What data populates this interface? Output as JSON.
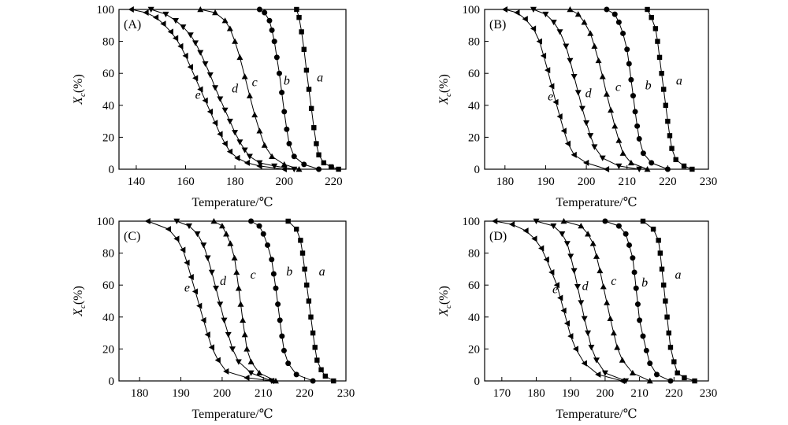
{
  "chart_data": [
    {
      "type": "line",
      "panel_label": "(A)",
      "xlabel": "Temperature/℃",
      "ylabel_main": "X",
      "ylabel_sub": "c",
      "ylabel_unit": "(%)",
      "xlim": [
        133,
        225
      ],
      "ylim": [
        0,
        100
      ],
      "xticks": [
        140,
        160,
        180,
        200,
        220
      ],
      "yticks": [
        0,
        20,
        40,
        60,
        80,
        100
      ],
      "series": [
        {
          "name": "a",
          "marker": "square",
          "label_pos": [
            214.5,
            55
          ],
          "x": [
            205,
            206,
            207,
            208,
            209,
            210,
            211,
            212,
            213,
            214,
            216,
            219,
            222
          ],
          "y": [
            100,
            95,
            86,
            75,
            62,
            50,
            38,
            26,
            16,
            9,
            4,
            1.5,
            0
          ]
        },
        {
          "name": "b",
          "marker": "circle",
          "label_pos": [
            201,
            53
          ],
          "x": [
            190,
            192,
            194,
            195,
            196,
            197,
            198,
            199,
            200,
            201,
            202,
            204,
            208,
            214
          ],
          "y": [
            100,
            98,
            93,
            87,
            80,
            70,
            60,
            48,
            36,
            25,
            16,
            8,
            3,
            0
          ]
        },
        {
          "name": "c",
          "marker": "triangle-up",
          "label_pos": [
            188,
            52
          ],
          "x": [
            166,
            172,
            176,
            178,
            180,
            182,
            184,
            186,
            188,
            190,
            192,
            195,
            200,
            206
          ],
          "y": [
            100,
            98,
            93,
            88,
            80,
            70,
            58,
            46,
            34,
            24,
            15,
            8,
            3,
            0
          ]
        },
        {
          "name": "d",
          "marker": "triangle-down",
          "label_pos": [
            180,
            48
          ],
          "x": [
            146,
            152,
            156,
            159,
            162,
            164,
            166,
            168,
            170,
            172,
            174,
            176,
            178,
            180,
            182,
            184,
            186,
            190,
            196,
            204
          ],
          "y": [
            100,
            97,
            93,
            89,
            84,
            79,
            73,
            66,
            59,
            51,
            44,
            37,
            30,
            23,
            17,
            12,
            8,
            4,
            2,
            0
          ]
        },
        {
          "name": "e",
          "marker": "triangle-left",
          "label_pos": [
            165,
            44
          ],
          "x": [
            138,
            144,
            148,
            151,
            154,
            156,
            158,
            160,
            162,
            164,
            166,
            168,
            170,
            172,
            174,
            176,
            178,
            181,
            185,
            190,
            200
          ],
          "y": [
            100,
            98,
            95,
            91,
            86,
            82,
            77,
            71,
            64,
            57,
            50,
            43,
            36,
            29,
            22,
            16,
            11,
            7,
            4,
            2,
            0
          ]
        }
      ]
    },
    {
      "type": "line",
      "panel_label": "(B)",
      "xlabel": "Temperature/℃",
      "ylabel_main": "X",
      "ylabel_sub": "c",
      "ylabel_unit": "(%)",
      "xlim": [
        175,
        230
      ],
      "ylim": [
        0,
        100
      ],
      "xticks": [
        180,
        190,
        200,
        210,
        220,
        230
      ],
      "yticks": [
        0,
        20,
        40,
        60,
        80,
        100
      ],
      "series": [
        {
          "name": "a",
          "marker": "square",
          "label_pos": [
            222.8,
            53
          ],
          "x": [
            215,
            216,
            217,
            217.5,
            218,
            218.5,
            219,
            219.5,
            220,
            220.5,
            221,
            222,
            224,
            226
          ],
          "y": [
            100,
            95,
            88,
            80,
            70,
            60,
            50,
            40,
            30,
            21,
            13,
            6,
            2,
            0
          ]
        },
        {
          "name": "b",
          "marker": "circle",
          "label_pos": [
            215.2,
            50
          ],
          "x": [
            205,
            207,
            208,
            209,
            210,
            210.5,
            211,
            211.5,
            212,
            212.5,
            213,
            214,
            216,
            220
          ],
          "y": [
            100,
            97,
            92,
            85,
            75,
            66,
            56,
            46,
            36,
            27,
            19,
            10,
            4,
            0
          ]
        },
        {
          "name": "c",
          "marker": "triangle-up",
          "label_pos": [
            207.8,
            49
          ],
          "x": [
            196,
            198,
            199.5,
            201,
            202,
            203,
            204,
            205,
            206,
            207,
            208,
            209,
            211,
            215
          ],
          "y": [
            100,
            97,
            92,
            85,
            77,
            68,
            58,
            47,
            37,
            27,
            18,
            10,
            4,
            0
          ]
        },
        {
          "name": "d",
          "marker": "triangle-down",
          "label_pos": [
            200.5,
            45
          ],
          "x": [
            187,
            190,
            192,
            193.5,
            195,
            196,
            197,
            198,
            199,
            200,
            201,
            202,
            204,
            208,
            213
          ],
          "y": [
            100,
            97,
            92,
            86,
            77,
            68,
            58,
            48,
            38,
            29,
            21,
            14,
            7,
            2,
            0
          ]
        },
        {
          "name": "e",
          "marker": "triangle-left",
          "label_pos": [
            191.2,
            43
          ],
          "x": [
            180,
            183,
            185,
            187,
            188.5,
            189.5,
            190.5,
            191.5,
            192.5,
            193.5,
            194.5,
            195.5,
            197,
            200,
            205
          ],
          "y": [
            100,
            98,
            94,
            88,
            80,
            71,
            62,
            52,
            42,
            33,
            24,
            16,
            9,
            4,
            0
          ]
        }
      ]
    },
    {
      "type": "line",
      "panel_label": "(C)",
      "xlabel": "Temperature/℃",
      "ylabel_main": "X",
      "ylabel_sub": "c",
      "ylabel_unit": "(%)",
      "xlim": [
        175,
        230
      ],
      "ylim": [
        0,
        100
      ],
      "xticks": [
        180,
        190,
        200,
        210,
        220,
        230
      ],
      "yticks": [
        0,
        20,
        40,
        60,
        80,
        100
      ],
      "series": [
        {
          "name": "a",
          "marker": "square",
          "label_pos": [
            224.2,
            66
          ],
          "x": [
            216,
            218,
            219,
            219.5,
            220,
            220.5,
            221,
            221.5,
            222,
            222.5,
            223,
            224,
            225,
            227
          ],
          "y": [
            100,
            95,
            88,
            80,
            70,
            60,
            50,
            40,
            30,
            21,
            13,
            7,
            3,
            0
          ]
        },
        {
          "name": "b",
          "marker": "circle",
          "label_pos": [
            216.3,
            66
          ],
          "x": [
            207,
            209,
            210,
            211,
            212,
            212.5,
            213,
            213.5,
            214,
            214.5,
            215,
            216,
            218,
            222
          ],
          "y": [
            100,
            97,
            92,
            85,
            76,
            67,
            58,
            48,
            38,
            28,
            19,
            11,
            4,
            0
          ]
        },
        {
          "name": "c",
          "marker": "triangle-up",
          "label_pos": [
            207.5,
            64
          ],
          "x": [
            198,
            200,
            201,
            202,
            203,
            203.5,
            204,
            204.5,
            205,
            205.5,
            206,
            207,
            209,
            213
          ],
          "y": [
            100,
            97,
            92,
            86,
            77,
            68,
            58,
            48,
            38,
            29,
            20,
            12,
            5,
            0
          ]
        },
        {
          "name": "d",
          "marker": "triangle-down",
          "label_pos": [
            200.2,
            60
          ],
          "x": [
            189,
            192,
            194,
            195.5,
            196.5,
            197.5,
            198.5,
            199.5,
            200.5,
            201.5,
            202.5,
            204,
            207,
            212
          ],
          "y": [
            100,
            97,
            92,
            85,
            77,
            68,
            58,
            48,
            38,
            29,
            20,
            12,
            5,
            0
          ]
        },
        {
          "name": "e",
          "marker": "triangle-left",
          "label_pos": [
            191.5,
            56
          ],
          "x": [
            182,
            187,
            189,
            190.5,
            191.5,
            192.5,
            193.5,
            194.5,
            195.5,
            196.5,
            197.5,
            199,
            201,
            206,
            212
          ],
          "y": [
            100,
            95,
            89,
            82,
            74,
            65,
            56,
            47,
            38,
            29,
            21,
            13,
            6,
            2,
            0
          ]
        }
      ]
    },
    {
      "type": "line",
      "panel_label": "(D)",
      "xlabel": "Temperature/℃",
      "ylabel_main": "X",
      "ylabel_sub": "c",
      "ylabel_unit": "(%)",
      "xlim": [
        165,
        230
      ],
      "ylim": [
        0,
        100
      ],
      "xticks": [
        170,
        180,
        190,
        200,
        210,
        220,
        230
      ],
      "yticks": [
        0,
        20,
        40,
        60,
        80,
        100
      ],
      "series": [
        {
          "name": "a",
          "marker": "square",
          "label_pos": [
            221.2,
            64
          ],
          "x": [
            211,
            214,
            215.5,
            216,
            216.5,
            217,
            217.5,
            218,
            218.5,
            219,
            220,
            221,
            223,
            226
          ],
          "y": [
            100,
            95,
            88,
            80,
            70,
            60,
            50,
            40,
            30,
            21,
            12,
            5,
            2,
            0
          ]
        },
        {
          "name": "b",
          "marker": "circle",
          "label_pos": [
            211.5,
            59
          ],
          "x": [
            200,
            204,
            206,
            207,
            208,
            208.5,
            209,
            209.5,
            210,
            211,
            212,
            213,
            215,
            219
          ],
          "y": [
            100,
            97,
            92,
            85,
            77,
            68,
            58,
            48,
            38,
            28,
            19,
            11,
            4,
            0
          ]
        },
        {
          "name": "c",
          "marker": "triangle-up",
          "label_pos": [
            202.5,
            60
          ],
          "x": [
            188,
            193,
            195,
            196.5,
            197.5,
            198.5,
            199.5,
            200.5,
            201.5,
            202.5,
            203.5,
            205,
            208,
            213
          ],
          "y": [
            100,
            97,
            92,
            86,
            78,
            69,
            59,
            49,
            39,
            30,
            21,
            13,
            5,
            0
          ]
        },
        {
          "name": "d",
          "marker": "triangle-down",
          "label_pos": [
            194.2,
            57
          ],
          "x": [
            180,
            185,
            187.5,
            189,
            190,
            191,
            192,
            193,
            194,
            195,
            196,
            197.5,
            200,
            206
          ],
          "y": [
            100,
            97,
            92,
            86,
            78,
            69,
            59,
            49,
            39,
            30,
            21,
            13,
            5,
            0
          ]
        },
        {
          "name": "e",
          "marker": "triangle-left",
          "label_pos": [
            185.5,
            55
          ],
          "x": [
            168,
            173,
            177,
            179.5,
            181.5,
            183,
            184.5,
            186,
            187,
            188,
            189,
            190,
            191.5,
            194,
            198,
            205
          ],
          "y": [
            100,
            98,
            94,
            89,
            83,
            76,
            68,
            60,
            52,
            44,
            36,
            28,
            20,
            11,
            4,
            0
          ]
        }
      ]
    }
  ]
}
